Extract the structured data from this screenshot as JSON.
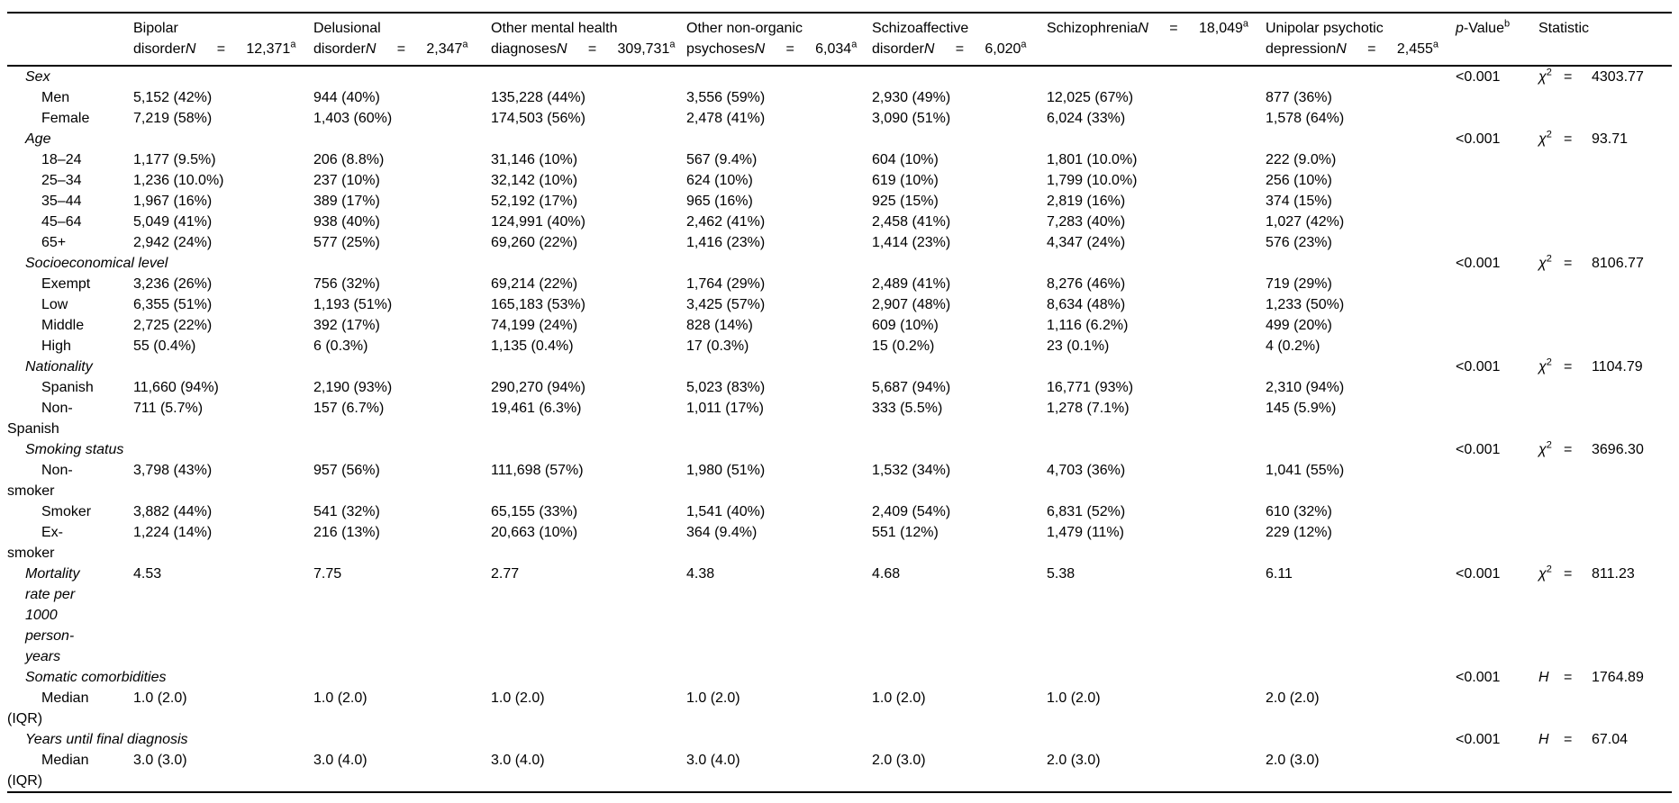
{
  "table": {
    "n_label": "N",
    "eq_sign": "=",
    "n_superscript": "a",
    "p_header": {
      "pre": "p",
      "post": "-Value",
      "sup": "b"
    },
    "stat_header": "Statistic",
    "columns": [
      {
        "slug": "bipolar-disorder",
        "top": "Bipolar",
        "bottom": "disorder",
        "n": "12,371"
      },
      {
        "slug": "delusional-disorder",
        "top": "Delusional",
        "bottom": "disorder",
        "n": "2,347"
      },
      {
        "slug": "other-mental-health-diagnoses",
        "top": "Other mental health",
        "bottom": "diagnoses",
        "n": "309,731"
      },
      {
        "slug": "other-non-organic-psychoses",
        "top": "Other non-organic",
        "bottom": "psychoses",
        "n": "6,034"
      },
      {
        "slug": "schizoaffective-disorder",
        "top": "Schizoaffective",
        "bottom": "disorder",
        "n": "6,020"
      },
      {
        "slug": "schizophrenia",
        "top": "Schizophrenia",
        "bottom": "",
        "n": "18,049"
      },
      {
        "slug": "unipolar-psychotic-depression",
        "top": "Unipolar psychotic",
        "bottom": "depression",
        "n": "2,455"
      }
    ],
    "rows": [
      {
        "type": "section",
        "slug": "sex",
        "label": "Sex",
        "p": "<0.001",
        "stat": {
          "sym": "χ",
          "sup": "2",
          "val": "4303.77"
        }
      },
      {
        "type": "item",
        "slug": "men",
        "label": "Men",
        "values": [
          "5,152 (42%)",
          "944 (40%)",
          "135,228 (44%)",
          "3,556 (59%)",
          "2,930 (49%)",
          "12,025 (67%)",
          "877 (36%)"
        ]
      },
      {
        "type": "item",
        "slug": "female",
        "label": "Female",
        "values": [
          "7,219 (58%)",
          "1,403 (60%)",
          "174,503 (56%)",
          "2,478 (41%)",
          "3,090 (51%)",
          "6,024 (33%)",
          "1,578 (64%)"
        ]
      },
      {
        "type": "section",
        "slug": "age",
        "label": "Age",
        "p": "<0.001",
        "stat": {
          "sym": "χ",
          "sup": "2",
          "val": "93.71"
        }
      },
      {
        "type": "item",
        "slug": "age-18-24",
        "label": "18–24",
        "values": [
          "1,177 (9.5%)",
          "206 (8.8%)",
          "31,146 (10%)",
          "567 (9.4%)",
          "604 (10%)",
          "1,801 (10.0%)",
          "222 (9.0%)"
        ]
      },
      {
        "type": "item",
        "slug": "age-25-34",
        "label": "25–34",
        "values": [
          "1,236 (10.0%)",
          "237 (10%)",
          "32,142 (10%)",
          "624 (10%)",
          "619 (10%)",
          "1,799 (10.0%)",
          "256 (10%)"
        ]
      },
      {
        "type": "item",
        "slug": "age-35-44",
        "label": "35–44",
        "values": [
          "1,967 (16%)",
          "389 (17%)",
          "52,192 (17%)",
          "965 (16%)",
          "925 (15%)",
          "2,819 (16%)",
          "374 (15%)"
        ]
      },
      {
        "type": "item",
        "slug": "age-45-64",
        "label": "45–64",
        "values": [
          "5,049 (41%)",
          "938 (40%)",
          "124,991 (40%)",
          "2,462 (41%)",
          "2,458 (41%)",
          "7,283 (40%)",
          "1,027 (42%)"
        ]
      },
      {
        "type": "item",
        "slug": "age-65-plus",
        "label": "65+",
        "values": [
          "2,942 (24%)",
          "577 (25%)",
          "69,260 (22%)",
          "1,416 (23%)",
          "1,414 (23%)",
          "4,347 (24%)",
          "576 (23%)"
        ]
      },
      {
        "type": "section",
        "slug": "socioeconomical-level",
        "label": "Socioeconomical level",
        "p": "<0.001",
        "stat": {
          "sym": "χ",
          "sup": "2",
          "val": "8106.77"
        }
      },
      {
        "type": "item",
        "slug": "exempt",
        "label": "Exempt",
        "values": [
          "3,236 (26%)",
          "756 (32%)",
          "69,214 (22%)",
          "1,764 (29%)",
          "2,489 (41%)",
          "8,276 (46%)",
          "719 (29%)"
        ]
      },
      {
        "type": "item",
        "slug": "low",
        "label": "Low",
        "values": [
          "6,355 (51%)",
          "1,193 (51%)",
          "165,183 (53%)",
          "3,425 (57%)",
          "2,907 (48%)",
          "8,634 (48%)",
          "1,233 (50%)"
        ]
      },
      {
        "type": "item",
        "slug": "middle",
        "label": "Middle",
        "values": [
          "2,725 (22%)",
          "392 (17%)",
          "74,199 (24%)",
          "828 (14%)",
          "609 (10%)",
          "1,116 (6.2%)",
          "499 (20%)"
        ]
      },
      {
        "type": "item",
        "slug": "high",
        "label": "High",
        "values": [
          "55 (0.4%)",
          "6 (0.3%)",
          "1,135 (0.4%)",
          "17 (0.3%)",
          "15 (0.2%)",
          "23 (0.1%)",
          "4 (0.2%)"
        ]
      },
      {
        "type": "section",
        "slug": "nationality",
        "label": "Nationality",
        "p": "<0.001",
        "stat": {
          "sym": "χ",
          "sup": "2",
          "val": "1104.79"
        }
      },
      {
        "type": "item",
        "slug": "spanish",
        "label": "Spanish",
        "values": [
          "11,660 (94%)",
          "2,190 (93%)",
          "290,270 (94%)",
          "5,023 (83%)",
          "5,687 (94%)",
          "16,771 (93%)",
          "2,310 (94%)"
        ]
      },
      {
        "type": "item",
        "slug": "non-spanish",
        "label": "Non-Spanish",
        "values": [
          "711 (5.7%)",
          "157 (6.7%)",
          "19,461 (6.3%)",
          "1,011 (17%)",
          "333 (5.5%)",
          "1,278 (7.1%)",
          "145 (5.9%)"
        ]
      },
      {
        "type": "section",
        "slug": "smoking-status",
        "label": "Smoking status",
        "p": "<0.001",
        "stat": {
          "sym": "χ",
          "sup": "2",
          "val": "3696.30"
        }
      },
      {
        "type": "item",
        "slug": "non-smoker",
        "label": "Non-smoker",
        "values": [
          "3,798 (43%)",
          "957 (56%)",
          "111,698 (57%)",
          "1,980 (51%)",
          "1,532 (34%)",
          "4,703 (36%)",
          "1,041 (55%)"
        ]
      },
      {
        "type": "item",
        "slug": "smoker",
        "label": "Smoker",
        "values": [
          "3,882 (44%)",
          "541 (32%)",
          "65,155 (33%)",
          "1,541 (40%)",
          "2,409 (54%)",
          "6,831 (52%)",
          "610 (32%)"
        ]
      },
      {
        "type": "item",
        "slug": "ex-smoker",
        "label": "Ex-smoker",
        "values": [
          "1,224 (14%)",
          "216 (13%)",
          "20,663 (10%)",
          "364 (9.4%)",
          "551 (12%)",
          "1,479 (11%)",
          "229 (12%)"
        ]
      },
      {
        "type": "datasec",
        "slug": "mortality-rate",
        "label": "Mortality rate per 1000 person-years",
        "values": [
          "4.53",
          "7.75",
          "2.77",
          "4.38",
          "4.68",
          "5.38",
          "6.11"
        ],
        "p": "<0.001",
        "stat": {
          "sym": "χ",
          "sup": "2",
          "val": "811.23"
        }
      },
      {
        "type": "section",
        "slug": "somatic-comorbidities",
        "label": "Somatic comorbidities",
        "p": "<0.001",
        "stat": {
          "sym": "H",
          "sup": "",
          "val": "1764.89"
        }
      },
      {
        "type": "item",
        "slug": "somatic-median-iqr",
        "label": "Median (IQR)",
        "values": [
          "1.0 (2.0)",
          "1.0 (2.0)",
          "1.0 (2.0)",
          "1.0 (2.0)",
          "1.0 (2.0)",
          "1.0 (2.0)",
          "2.0 (2.0)"
        ]
      },
      {
        "type": "section",
        "slug": "years-until-final-diagnosis",
        "label": "Years until final diagnosis",
        "p": "<0.001",
        "stat": {
          "sym": "H",
          "sup": "",
          "val": "67.04"
        }
      },
      {
        "type": "item",
        "slug": "years-median-iqr",
        "label": "Median (IQR)",
        "values": [
          "3.0 (3.0)",
          "3.0 (4.0)",
          "3.0 (4.0)",
          "3.0 (4.0)",
          "2.0 (3.0)",
          "2.0 (3.0)",
          "2.0 (3.0)"
        ]
      }
    ]
  }
}
